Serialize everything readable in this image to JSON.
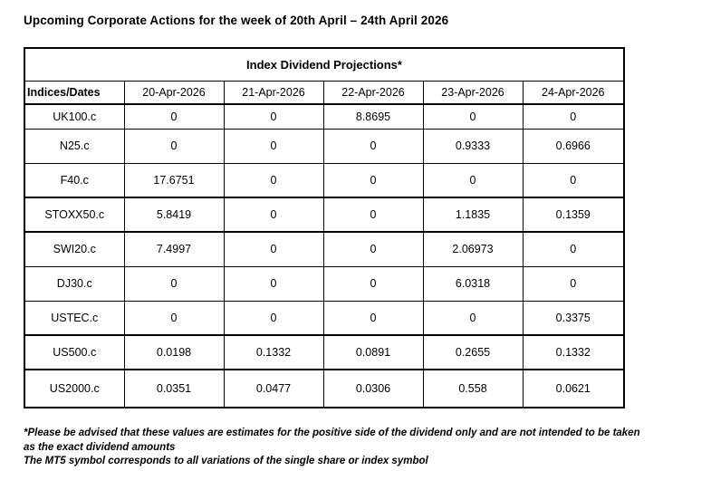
{
  "title": "Upcoming Corporate Actions for the week of 20th April – 24th April 2026",
  "table": {
    "caption": "Index Dividend Projections*",
    "corner_header": "Indices/Dates",
    "date_headers": [
      "20-Apr-2026",
      "21-Apr-2026",
      "22-Apr-2026",
      "23-Apr-2026",
      "24-Apr-2026"
    ],
    "rows": [
      {
        "index": "UK100.c",
        "values": [
          "0",
          "0",
          "8.8695",
          "0",
          "0"
        ]
      },
      {
        "index": "N25.c",
        "values": [
          "0",
          "0",
          "0",
          "0.9333",
          "0.6966"
        ]
      },
      {
        "index": "F40.c",
        "values": [
          "17.6751",
          "0",
          "0",
          "0",
          "0"
        ]
      },
      {
        "index": "STOXX50.c",
        "values": [
          "5.8419",
          "0",
          "0",
          "1.1835",
          "0.1359"
        ]
      },
      {
        "index": "SWI20.c",
        "values": [
          "7.4997",
          "0",
          "0",
          "2.06973",
          "0"
        ]
      },
      {
        "index": "DJ30.c",
        "values": [
          "0",
          "0",
          "0",
          "6.0318",
          "0"
        ]
      },
      {
        "index": "USTEC.c",
        "values": [
          "0",
          "0",
          "0",
          "0",
          "0.3375"
        ]
      },
      {
        "index": "US500.c",
        "values": [
          "0.0198",
          "0.1332",
          "0.0891",
          "0.2655",
          "0.1332"
        ]
      },
      {
        "index": "US2000.c",
        "values": [
          "0.0351",
          "0.0477",
          "0.0306",
          "0.558",
          "0.0621"
        ]
      }
    ]
  },
  "footnotes": [
    "*Please be advised that these values are estimates for the positive side of the dividend only and are not intended to be taken as the exact dividend amounts",
    "The MT5 symbol corresponds to all variations of the single share or index symbol"
  ],
  "colors": {
    "text": "#000000",
    "border": "#000000",
    "background": "#ffffff"
  }
}
